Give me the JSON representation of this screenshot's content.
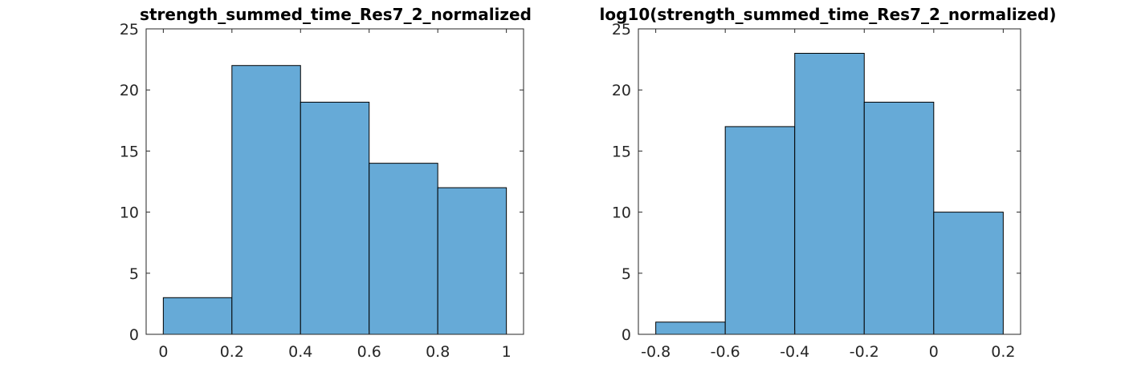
{
  "chart_data": [
    {
      "type": "bar",
      "title": "strength_summed_time_Res7_2_normalized",
      "xlabel": "",
      "ylabel": "",
      "bin_edges": [
        0,
        0.2,
        0.4,
        0.6,
        0.8,
        1.0
      ],
      "values": [
        3,
        22,
        19,
        14,
        12
      ],
      "xlim": [
        -0.05,
        1.05
      ],
      "ylim": [
        0,
        25
      ],
      "xticks": [
        0,
        0.2,
        0.4,
        0.6,
        0.8,
        1
      ],
      "xtick_labels": [
        "0",
        "0.2",
        "0.4",
        "0.6",
        "0.8",
        "1"
      ],
      "yticks": [
        0,
        5,
        10,
        15,
        20,
        25
      ],
      "ytick_labels": [
        "0",
        "5",
        "10",
        "15",
        "20",
        "25"
      ],
      "bar_color": "#66aad7",
      "grid": false
    },
    {
      "type": "bar",
      "title": "log10(strength_summed_time_Res7_2_normalized)",
      "xlabel": "",
      "ylabel": "",
      "bin_edges": [
        -0.8,
        -0.6,
        -0.4,
        -0.2,
        0,
        0.2
      ],
      "values": [
        1,
        17,
        23,
        19,
        10
      ],
      "xlim": [
        -0.85,
        0.25
      ],
      "ylim": [
        0,
        25
      ],
      "xticks": [
        -0.8,
        -0.6,
        -0.4,
        -0.2,
        0,
        0.2
      ],
      "xtick_labels": [
        "-0.8",
        "-0.6",
        "-0.4",
        "-0.2",
        "0",
        "0.2"
      ],
      "yticks": [
        0,
        5,
        10,
        15,
        20,
        25
      ],
      "ytick_labels": [
        "0",
        "5",
        "10",
        "15",
        "20",
        "25"
      ],
      "bar_color": "#66aad7",
      "grid": false
    }
  ]
}
